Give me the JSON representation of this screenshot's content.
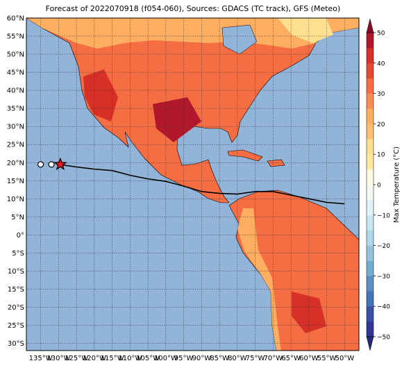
{
  "title": "Forecast of 2022070918 (f054-060), Sources: GDACS (TC track), GFS (Meteo)",
  "map": {
    "xlim": [
      -139,
      -46
    ],
    "ylim": [
      -32,
      60
    ],
    "xticks": [
      {
        "value": -135,
        "label": "135°W"
      },
      {
        "value": -130,
        "label": "130°W"
      },
      {
        "value": -125,
        "label": "125°W"
      },
      {
        "value": -120,
        "label": "120°W"
      },
      {
        "value": -115,
        "label": "115°W"
      },
      {
        "value": -110,
        "label": "110°W"
      },
      {
        "value": -105,
        "label": "105°W"
      },
      {
        "value": -100,
        "label": "100°W"
      },
      {
        "value": -95,
        "label": "95°W"
      },
      {
        "value": -90,
        "label": "90°W"
      },
      {
        "value": -85,
        "label": "85°W"
      },
      {
        "value": -80,
        "label": "80°W"
      },
      {
        "value": -75,
        "label": "75°W"
      },
      {
        "value": -70,
        "label": "70°W"
      },
      {
        "value": -65,
        "label": "65°W"
      },
      {
        "value": -60,
        "label": "60°W"
      },
      {
        "value": -55,
        "label": "55°W"
      },
      {
        "value": -50,
        "label": "50°W"
      }
    ],
    "yticks": [
      {
        "value": 60,
        "label": "60°N"
      },
      {
        "value": 55,
        "label": "55°N"
      },
      {
        "value": 50,
        "label": "50°N"
      },
      {
        "value": 45,
        "label": "45°N"
      },
      {
        "value": 40,
        "label": "40°N"
      },
      {
        "value": 35,
        "label": "35°N"
      },
      {
        "value": 30,
        "label": "30°N"
      },
      {
        "value": 25,
        "label": "25°N"
      },
      {
        "value": 20,
        "label": "20°N"
      },
      {
        "value": 15,
        "label": "15°N"
      },
      {
        "value": 10,
        "label": "10°N"
      },
      {
        "value": 5,
        "label": "5°N"
      },
      {
        "value": 0,
        "label": "0°"
      },
      {
        "value": -5,
        "label": "5°S"
      },
      {
        "value": -10,
        "label": "10°S"
      },
      {
        "value": -15,
        "label": "15°S"
      },
      {
        "value": -20,
        "label": "20°S"
      },
      {
        "value": -25,
        "label": "25°S"
      },
      {
        "value": -30,
        "label": "30°S"
      }
    ],
    "grid": true
  },
  "track": {
    "lon": [
      -130,
      -125,
      -120,
      -115,
      -110,
      -105,
      -100,
      -95,
      -90,
      -85,
      -80,
      -75,
      -70,
      -65,
      -60,
      -55,
      -50
    ],
    "lat": [
      19.5,
      18.8,
      18.2,
      17.8,
      16.5,
      15.5,
      14.8,
      13.5,
      12,
      11.5,
      11.3,
      12,
      12,
      11,
      10,
      9,
      8.6
    ],
    "color": "#000000"
  },
  "markers": [
    {
      "lon": -135,
      "lat": 19.5,
      "shape": "circle",
      "color": "#ffffff"
    },
    {
      "lon": -132,
      "lat": 19.5,
      "shape": "circle",
      "color": "#ffffff"
    },
    {
      "lon": -129.5,
      "lat": 19.5,
      "shape": "star",
      "color": "#e41a1c"
    }
  ],
  "colorbar": {
    "label": "Max Temperature (°C)",
    "lim": [
      -50,
      50
    ],
    "step": 5,
    "colors": [
      "#313695",
      "#3b4fa3",
      "#4575b4",
      "#5e8fc3",
      "#74add1",
      "#91c3de",
      "#abd9e9",
      "#c6e6f1",
      "#e0f3f8",
      "#f2faf0",
      "#fffbe0",
      "#fee9a0",
      "#fee090",
      "#fdbf71",
      "#fdae61",
      "#f88d52",
      "#f46d43",
      "#e34a33",
      "#d73027",
      "#b2182b"
    ],
    "under": "#262a7c",
    "over": "#8b0a26",
    "ticks": [
      {
        "value": -50,
        "label": "−50"
      },
      {
        "value": -40,
        "label": "−40"
      },
      {
        "value": -30,
        "label": "−30"
      },
      {
        "value": -20,
        "label": "−20"
      },
      {
        "value": -10,
        "label": "−10"
      },
      0,
      10,
      20,
      30,
      40,
      50
    ]
  }
}
